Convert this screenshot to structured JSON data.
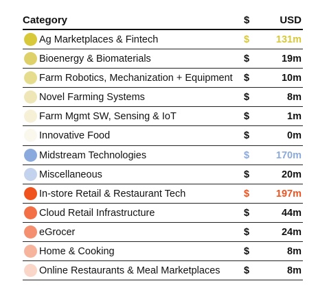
{
  "chart_data": {
    "type": "table",
    "columns": [
      "Category",
      "$",
      "USD"
    ],
    "rows": [
      {
        "category": "Ag Marketplaces & Fintech",
        "currency": "$",
        "usd": "131m",
        "value_musd": 131,
        "dot_color": "#d7c93a",
        "highlight": "#d7c93a"
      },
      {
        "category": "Bioenergy & Biomaterials",
        "currency": "$",
        "usd": "19m",
        "value_musd": 19,
        "dot_color": "#dfd16a",
        "highlight": null
      },
      {
        "category": "Farm Robotics, Mechanization + Equipment",
        "currency": "$",
        "usd": "10m",
        "value_musd": 10,
        "dot_color": "#e6dc8e",
        "highlight": null
      },
      {
        "category": "Novel Farming Systems",
        "currency": "$",
        "usd": "8m",
        "value_musd": 8,
        "dot_color": "#eee6b6",
        "highlight": null
      },
      {
        "category": "Farm Mgmt SW, Sensing & IoT",
        "currency": "$",
        "usd": "1m",
        "value_musd": 1,
        "dot_color": "#f5f0d6",
        "highlight": null
      },
      {
        "category": "Innovative Food",
        "currency": "$",
        "usd": "0m",
        "value_musd": 0,
        "dot_color": "#faf8ec",
        "highlight": null
      },
      {
        "category": "Midstream Technologies",
        "currency": "$",
        "usd": "170m",
        "value_musd": 170,
        "dot_color": "#8aa9dc",
        "highlight": "#8aa9dc"
      },
      {
        "category": "Miscellaneous",
        "currency": "$",
        "usd": "20m",
        "value_musd": 20,
        "dot_color": "#c3d3ee",
        "highlight": null
      },
      {
        "category": "In-store Retail & Restaurant Tech",
        "currency": "$",
        "usd": "197m",
        "value_musd": 197,
        "dot_color": "#f0521e",
        "highlight": "#f0521e"
      },
      {
        "category": "Cloud Retail Infrastructure",
        "currency": "$",
        "usd": "44m",
        "value_musd": 44,
        "dot_color": "#f36f45",
        "highlight": null
      },
      {
        "category": "eGrocer",
        "currency": "$",
        "usd": "24m",
        "value_musd": 24,
        "dot_color": "#f4906f",
        "highlight": null
      },
      {
        "category": "Home & Cooking",
        "currency": "$",
        "usd": "8m",
        "value_musd": 8,
        "dot_color": "#f6b49c",
        "highlight": null
      },
      {
        "category": "Online Restaurants & Meal Marketplaces",
        "currency": "$",
        "usd": "8m",
        "value_musd": 8,
        "dot_color": "#f9d6c8",
        "highlight": null
      }
    ]
  }
}
